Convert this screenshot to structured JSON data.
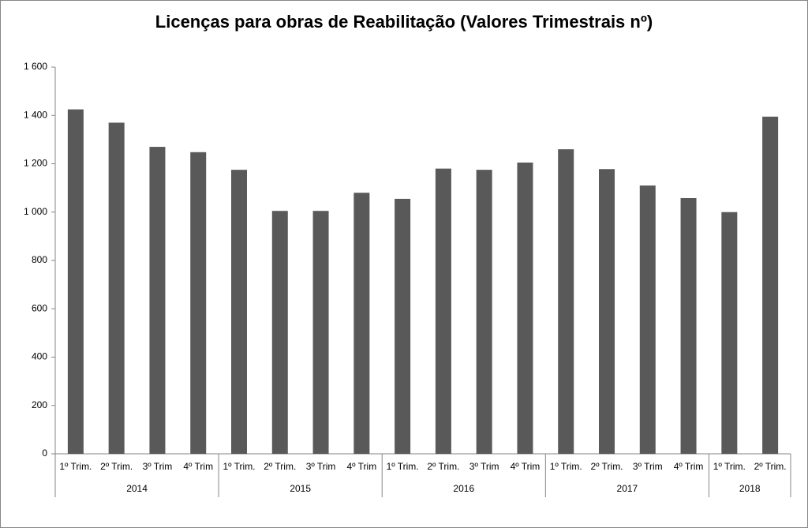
{
  "chart_data": {
    "type": "bar",
    "title": "Licenças para obras de Reabilitação (Valores Trimestrais nº)",
    "color": "#595959",
    "groups": [
      {
        "name": "2014",
        "categories": [
          "1º Trim.",
          "2º Trim.",
          "3º Trim",
          "4º Trim"
        ],
        "values": [
          1425,
          1370,
          1270,
          1248
        ]
      },
      {
        "name": "2015",
        "categories": [
          "1º Trim.",
          "2º Trim.",
          "3º Trim",
          "4º Trim"
        ],
        "values": [
          1175,
          1005,
          1005,
          1080
        ]
      },
      {
        "name": "2016",
        "categories": [
          "1º Trim.",
          "2º Trim.",
          "3º Trim",
          "4º Trim"
        ],
        "values": [
          1055,
          1180,
          1175,
          1205
        ]
      },
      {
        "name": "2017",
        "categories": [
          "1º Trim.",
          "2º Trim.",
          "3º Trim",
          "4º Trim"
        ],
        "values": [
          1260,
          1178,
          1110,
          1058
        ]
      },
      {
        "name": "2018",
        "categories": [
          "1º Trim.",
          "2º Trim."
        ],
        "values": [
          1000,
          1395
        ]
      }
    ],
    "ylim": [
      0,
      1600
    ],
    "yticks": [
      0,
      200,
      400,
      600,
      800,
      {
        "value": 1000,
        "label": "1 000"
      },
      {
        "value": 1200,
        "label": "1 200"
      },
      {
        "value": 1400,
        "label": "1 400"
      },
      {
        "value": 1600,
        "label": "1 600"
      }
    ],
    "grid": false
  }
}
